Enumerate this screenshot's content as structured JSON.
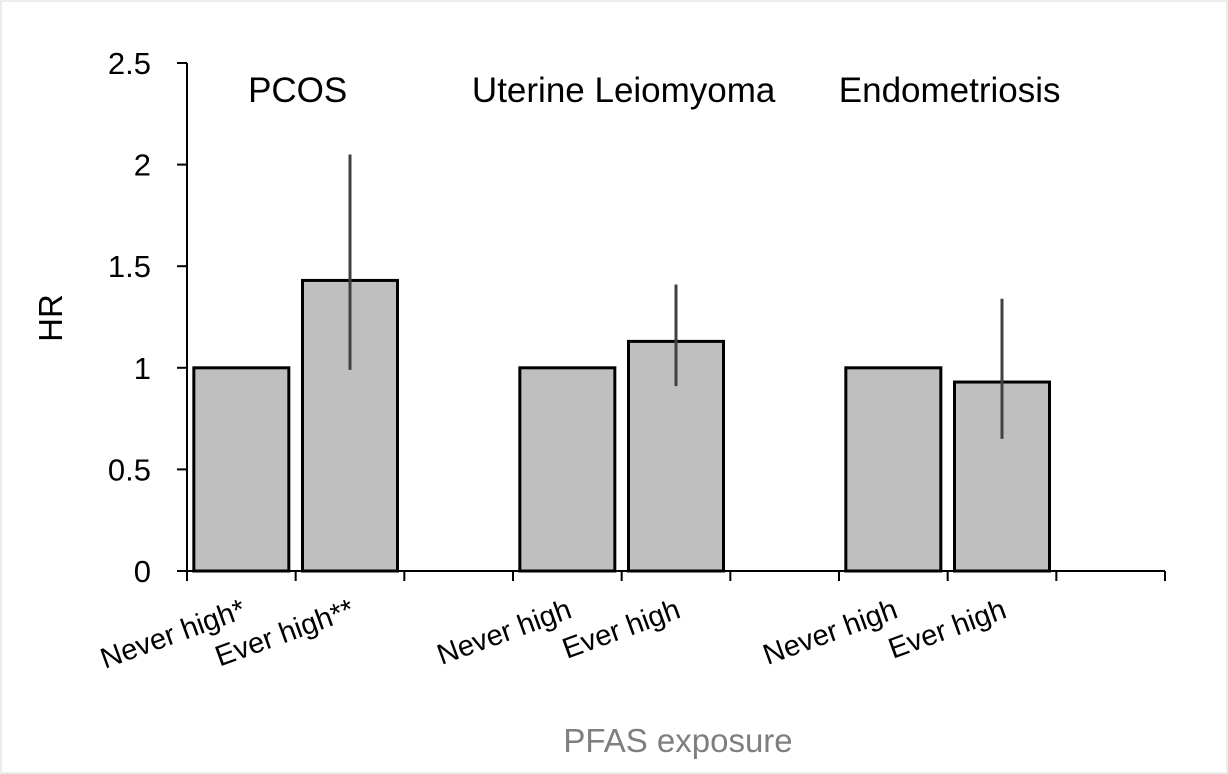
{
  "chart_data": {
    "type": "bar",
    "xlabel": "PFAS exposure",
    "ylabel": "HR",
    "ylim": [
      0,
      2.5
    ],
    "yticks": [
      "0",
      "0.5",
      "1",
      "1.5",
      "2",
      "2.5"
    ],
    "grid": false,
    "groups": [
      {
        "name": "PCOS",
        "categories": [
          "Never high*",
          "Ever high**"
        ],
        "values": [
          1.0,
          1.43
        ],
        "ci_low": [
          null,
          0.99
        ],
        "ci_high": [
          null,
          2.05
        ]
      },
      {
        "name": "Uterine Leiomyoma",
        "categories": [
          "Never high",
          "Ever high"
        ],
        "values": [
          1.0,
          1.13
        ],
        "ci_low": [
          null,
          0.91
        ],
        "ci_high": [
          null,
          1.41
        ]
      },
      {
        "name": "Endometriosis",
        "categories": [
          "Never high",
          "Ever high"
        ],
        "values": [
          1.0,
          0.93
        ],
        "ci_low": [
          null,
          0.65
        ],
        "ci_high": [
          null,
          1.34
        ]
      }
    ],
    "colors": {
      "bar_fill": "#bfbfbf",
      "bar_stroke": "#000000",
      "error_bar": "#404040",
      "axis": "#000000",
      "x_title": "#7f7f7f"
    }
  }
}
